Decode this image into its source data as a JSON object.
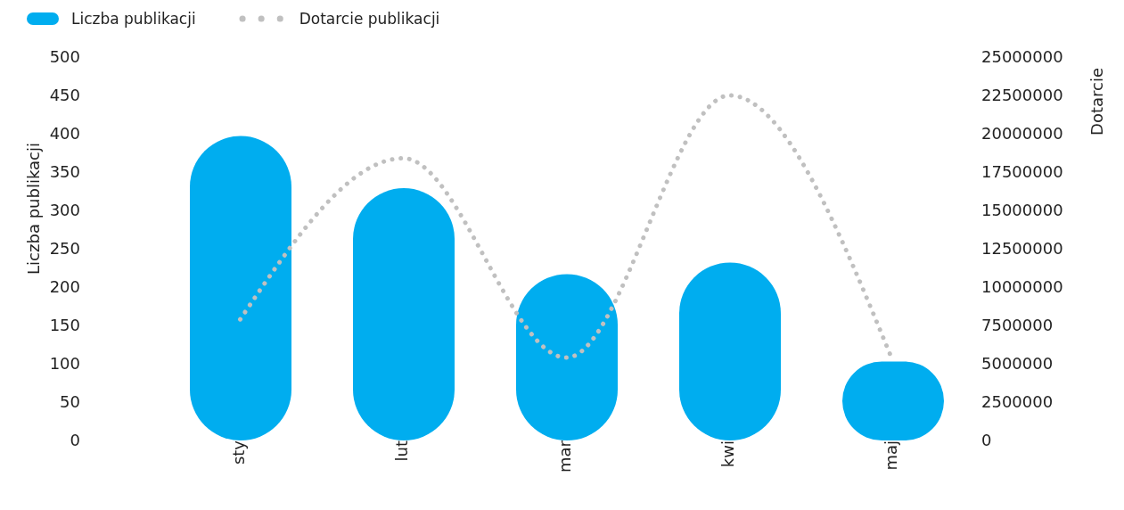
{
  "chart_data": {
    "type": "bar",
    "categories": [
      "sty",
      "lut",
      "mar",
      "kwi",
      "maj"
    ],
    "ylabel": "Liczba publikacji",
    "y2label": "Dotarcie",
    "ylim": [
      0,
      500
    ],
    "yticks": [
      0,
      50,
      100,
      150,
      200,
      250,
      300,
      350,
      400,
      450,
      500
    ],
    "y2lim": [
      0,
      25000000
    ],
    "y2ticks": [
      0,
      2500000,
      5000000,
      7500000,
      10000000,
      12500000,
      15000000,
      17500000,
      20000000,
      22500000,
      25000000
    ],
    "legend": "top left",
    "grid": false,
    "series": [
      {
        "name": "Liczba publikacji",
        "color": "#00adef",
        "values": [
          397,
          329,
          217,
          232,
          103
        ]
      },
      {
        "name": "Dotarcie publikacji",
        "type": "line",
        "axis": "y2",
        "color": "#c0c0c0",
        "line_style": "dotted",
        "marker": "none",
        "values": [
          7900000,
          18400000,
          5400000,
          22500000,
          5200000
        ]
      }
    ]
  }
}
